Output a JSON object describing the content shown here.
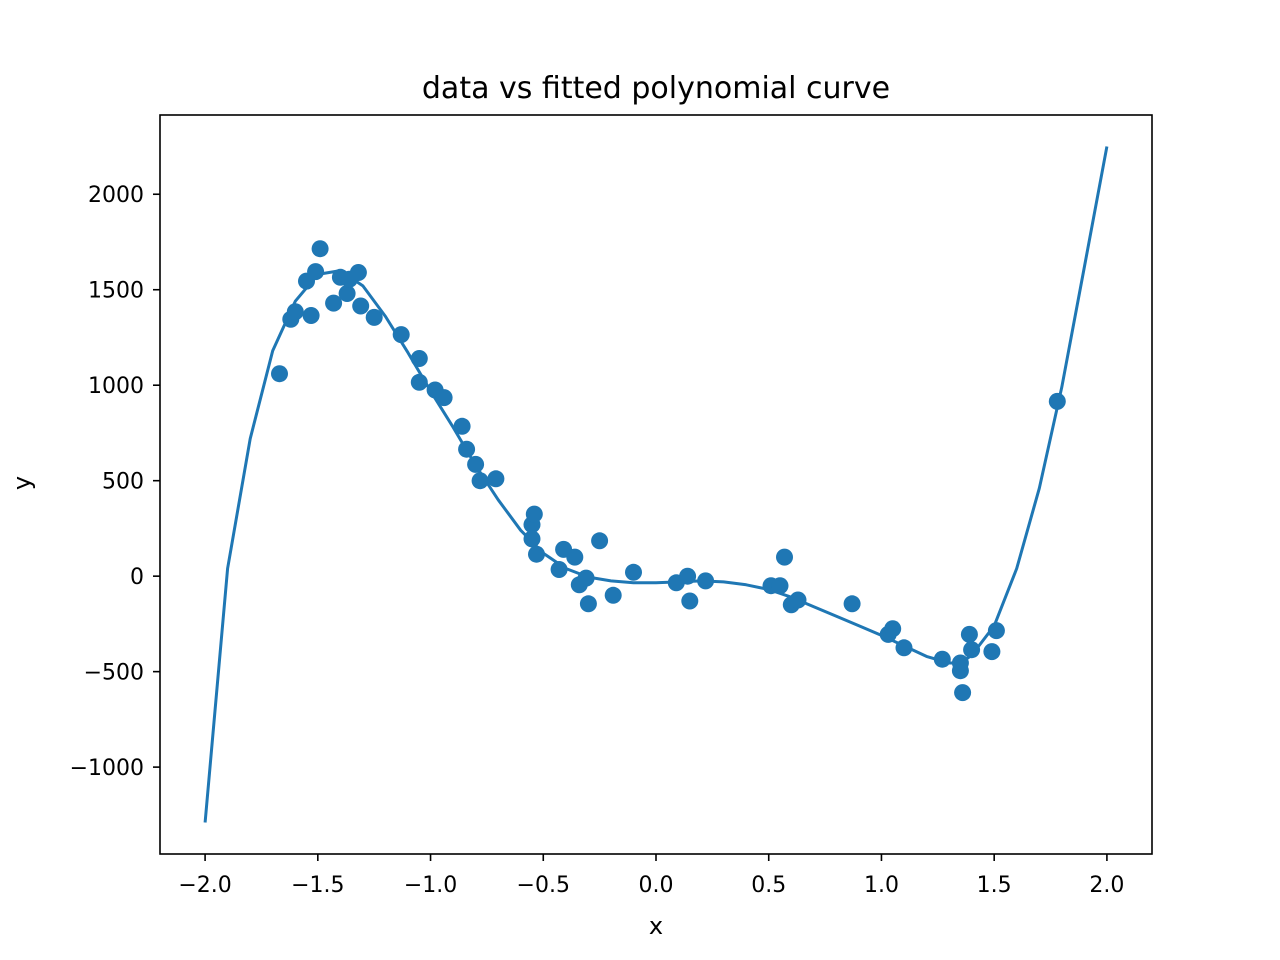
{
  "chart_data": {
    "type": "scatter",
    "title": "data vs fitted polynomial curve",
    "xlabel": "x",
    "ylabel": "y",
    "xlim": [
      -2.2,
      2.2
    ],
    "ylim": [
      -1455,
      2415
    ],
    "grid": false,
    "colors": {
      "series": "#1f77b4",
      "axes": "#000000",
      "background": "#ffffff"
    },
    "x_ticks": [
      {
        "value": -2.0,
        "label": "−2.0"
      },
      {
        "value": -1.5,
        "label": "−1.5"
      },
      {
        "value": -1.0,
        "label": "−1.0"
      },
      {
        "value": -0.5,
        "label": "−0.5"
      },
      {
        "value": 0.0,
        "label": "0.0"
      },
      {
        "value": 0.5,
        "label": "0.5"
      },
      {
        "value": 1.0,
        "label": "1.0"
      },
      {
        "value": 1.5,
        "label": "1.5"
      },
      {
        "value": 2.0,
        "label": "2.0"
      }
    ],
    "y_ticks": [
      {
        "value": -1000,
        "label": "−1000"
      },
      {
        "value": -500,
        "label": "−500"
      },
      {
        "value": 0,
        "label": "0"
      },
      {
        "value": 500,
        "label": "500"
      },
      {
        "value": 1000,
        "label": "1000"
      },
      {
        "value": 1500,
        "label": "1500"
      },
      {
        "value": 2000,
        "label": "2000"
      }
    ],
    "series": [
      {
        "type": "scatter",
        "points": [
          [
            -1.67,
            1060
          ],
          [
            -1.62,
            1345
          ],
          [
            -1.6,
            1385
          ],
          [
            -1.55,
            1545
          ],
          [
            -1.53,
            1365
          ],
          [
            -1.51,
            1595
          ],
          [
            -1.49,
            1715
          ],
          [
            -1.43,
            1430
          ],
          [
            -1.4,
            1565
          ],
          [
            -1.37,
            1480
          ],
          [
            -1.36,
            1555
          ],
          [
            -1.32,
            1590
          ],
          [
            -1.31,
            1415
          ],
          [
            -1.25,
            1355
          ],
          [
            -1.13,
            1265
          ],
          [
            -1.05,
            1140
          ],
          [
            -1.05,
            1015
          ],
          [
            -0.98,
            975
          ],
          [
            -0.94,
            935
          ],
          [
            -0.86,
            785
          ],
          [
            -0.84,
            665
          ],
          [
            -0.8,
            585
          ],
          [
            -0.78,
            500
          ],
          [
            -0.71,
            510
          ],
          [
            -0.55,
            270
          ],
          [
            -0.54,
            325
          ],
          [
            -0.55,
            195
          ],
          [
            -0.53,
            115
          ],
          [
            -0.43,
            35
          ],
          [
            -0.41,
            140
          ],
          [
            -0.36,
            100
          ],
          [
            -0.34,
            -45
          ],
          [
            -0.31,
            -10
          ],
          [
            -0.3,
            -145
          ],
          [
            -0.25,
            185
          ],
          [
            -0.19,
            -100
          ],
          [
            -0.1,
            20
          ],
          [
            0.09,
            -35
          ],
          [
            0.14,
            0
          ],
          [
            0.15,
            -130
          ],
          [
            0.22,
            -25
          ],
          [
            0.51,
            -50
          ],
          [
            0.55,
            -50
          ],
          [
            0.57,
            100
          ],
          [
            0.6,
            -150
          ],
          [
            0.63,
            -125
          ],
          [
            0.87,
            -145
          ],
          [
            1.03,
            -305
          ],
          [
            1.05,
            -275
          ],
          [
            1.1,
            -375
          ],
          [
            1.27,
            -435
          ],
          [
            1.35,
            -495
          ],
          [
            1.35,
            -455
          ],
          [
            1.36,
            -610
          ],
          [
            1.39,
            -305
          ],
          [
            1.4,
            -385
          ],
          [
            1.49,
            -395
          ],
          [
            1.51,
            -285
          ],
          [
            1.78,
            915
          ]
        ]
      },
      {
        "type": "line",
        "points": [
          [
            -2.0,
            -1290
          ],
          [
            -1.9,
            40
          ],
          [
            -1.8,
            720
          ],
          [
            -1.7,
            1180
          ],
          [
            -1.6,
            1440
          ],
          [
            -1.5,
            1580
          ],
          [
            -1.4,
            1600
          ],
          [
            -1.3,
            1520
          ],
          [
            -1.2,
            1360
          ],
          [
            -1.1,
            1170
          ],
          [
            -1.0,
            970
          ],
          [
            -0.9,
            780
          ],
          [
            -0.8,
            580
          ],
          [
            -0.7,
            400
          ],
          [
            -0.6,
            240
          ],
          [
            -0.5,
            120
          ],
          [
            -0.4,
            40
          ],
          [
            -0.3,
            -5
          ],
          [
            -0.2,
            -25
          ],
          [
            -0.1,
            -35
          ],
          [
            0.0,
            -35
          ],
          [
            0.1,
            -30
          ],
          [
            0.2,
            -25
          ],
          [
            0.3,
            -30
          ],
          [
            0.4,
            -45
          ],
          [
            0.5,
            -70
          ],
          [
            0.6,
            -110
          ],
          [
            0.7,
            -160
          ],
          [
            0.8,
            -210
          ],
          [
            0.9,
            -260
          ],
          [
            1.0,
            -310
          ],
          [
            1.1,
            -365
          ],
          [
            1.2,
            -420
          ],
          [
            1.3,
            -455
          ],
          [
            1.35,
            -455
          ],
          [
            1.4,
            -415
          ],
          [
            1.5,
            -260
          ],
          [
            1.6,
            40
          ],
          [
            1.7,
            460
          ],
          [
            1.8,
            990
          ],
          [
            1.9,
            1620
          ],
          [
            2.0,
            2250
          ]
        ]
      }
    ]
  }
}
